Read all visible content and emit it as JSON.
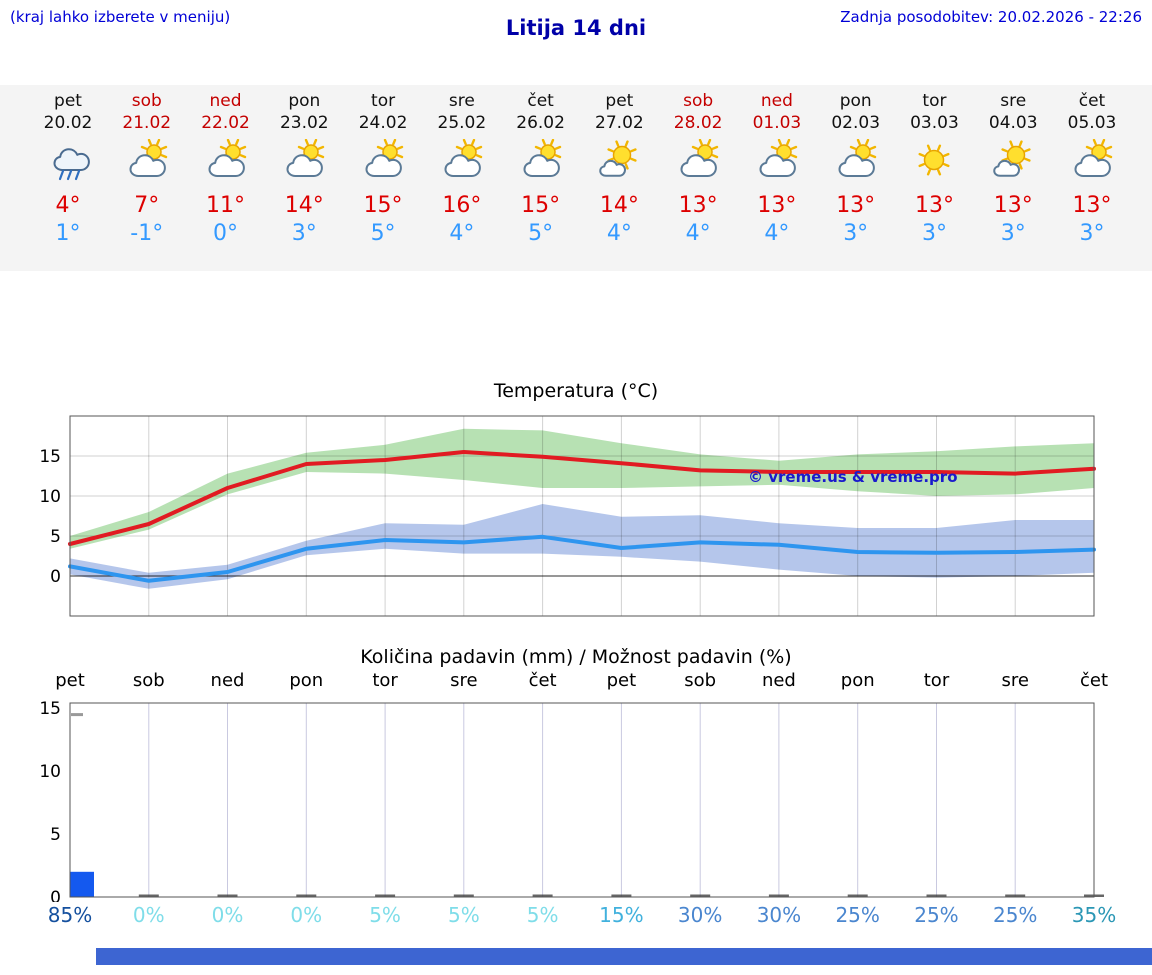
{
  "header": {
    "hint": "(kraj lahko izberete v meniju)",
    "title": "Litija 14 dni",
    "last_update": "Zadnja posodobitev: 20.02.2026 - 22:26"
  },
  "forecast": {
    "days": [
      {
        "name": "pet",
        "date": "20.02",
        "weekend": false,
        "icon": "rain",
        "high": "4°",
        "low": "1°"
      },
      {
        "name": "sob",
        "date": "21.02",
        "weekend": true,
        "icon": "partly-sunny",
        "high": "7°",
        "low": "-1°"
      },
      {
        "name": "ned",
        "date": "22.02",
        "weekend": true,
        "icon": "partly-sunny",
        "high": "11°",
        "low": "0°"
      },
      {
        "name": "pon",
        "date": "23.02",
        "weekend": false,
        "icon": "partly-sunny",
        "high": "14°",
        "low": "3°"
      },
      {
        "name": "tor",
        "date": "24.02",
        "weekend": false,
        "icon": "partly-sunny",
        "high": "15°",
        "low": "5°"
      },
      {
        "name": "sre",
        "date": "25.02",
        "weekend": false,
        "icon": "partly-sunny",
        "high": "16°",
        "low": "4°"
      },
      {
        "name": "čet",
        "date": "26.02",
        "weekend": false,
        "icon": "partly-sunny",
        "high": "15°",
        "low": "5°"
      },
      {
        "name": "pet",
        "date": "27.02",
        "weekend": false,
        "icon": "mostly-sunny",
        "high": "14°",
        "low": "4°"
      },
      {
        "name": "sob",
        "date": "28.02",
        "weekend": true,
        "icon": "partly-sunny",
        "high": "13°",
        "low": "4°"
      },
      {
        "name": "ned",
        "date": "01.03",
        "weekend": true,
        "icon": "partly-sunny",
        "high": "13°",
        "low": "4°"
      },
      {
        "name": "pon",
        "date": "02.03",
        "weekend": false,
        "icon": "partly-sunny",
        "high": "13°",
        "low": "3°"
      },
      {
        "name": "tor",
        "date": "03.03",
        "weekend": false,
        "icon": "sunny",
        "high": "13°",
        "low": "3°"
      },
      {
        "name": "sre",
        "date": "04.03",
        "weekend": false,
        "icon": "mostly-sunny",
        "high": "13°",
        "low": "3°"
      },
      {
        "name": "čet",
        "date": "05.03",
        "weekend": false,
        "icon": "partly-sunny",
        "high": "13°",
        "low": "3°"
      }
    ]
  },
  "chart_data": [
    {
      "type": "line",
      "title": "Temperatura (°C)",
      "categories": [
        "pet",
        "sob",
        "ned",
        "pon",
        "tor",
        "sre",
        "čet",
        "pet",
        "sob",
        "ned",
        "pon",
        "tor",
        "sre",
        "čet"
      ],
      "ylim": [
        -5,
        20
      ],
      "yticks": [
        0,
        5,
        10,
        15
      ],
      "grid": true,
      "legend_position": "none",
      "watermark": "© vreme.us & vreme.pro",
      "series": [
        {
          "name": "max-temperature",
          "color": "#e11b22",
          "band_color": "#a5d9a0",
          "values": [
            4,
            6.5,
            11,
            14,
            14.5,
            15.5,
            14.9,
            14.1,
            13.2,
            13,
            13,
            13,
            12.8,
            13.4
          ],
          "band_high": [
            5,
            8,
            12.8,
            15.4,
            16.4,
            18.4,
            18.2,
            16.6,
            15.2,
            14.4,
            15.2,
            15.6,
            16.2,
            16.6
          ],
          "band_low": [
            3.4,
            5.8,
            10.2,
            13,
            12.8,
            12,
            11,
            11,
            11.2,
            11.4,
            10.6,
            10,
            10.2,
            11
          ]
        },
        {
          "name": "min-temperature",
          "color": "#2e95ef",
          "band_color": "#a3b8e6",
          "values": [
            1.2,
            -0.6,
            0.5,
            3.4,
            4.5,
            4.2,
            4.9,
            3.5,
            4.2,
            3.9,
            3,
            2.9,
            3,
            3.3
          ],
          "band_high": [
            2.2,
            0.4,
            1.4,
            4.4,
            6.6,
            6.4,
            9,
            7.4,
            7.6,
            6.6,
            6,
            6,
            7,
            7
          ],
          "band_low": [
            0.2,
            -1.6,
            -0.4,
            2.6,
            3.4,
            2.8,
            2.8,
            2.4,
            1.8,
            0.8,
            0,
            -0.2,
            0,
            0.4
          ]
        }
      ]
    },
    {
      "type": "bar",
      "title": "Količina padavin (mm) / Možnost padavin (%)",
      "categories": [
        "pet",
        "sob",
        "ned",
        "pon",
        "tor",
        "sre",
        "čet",
        "pet",
        "sob",
        "ned",
        "pon",
        "tor",
        "sre",
        "čet"
      ],
      "ylim": [
        0,
        15.4
      ],
      "yticks": [
        0,
        5,
        10,
        15
      ],
      "bar_color": "#1459ef",
      "values": [
        2,
        0,
        0,
        0,
        0,
        0,
        0,
        0,
        0,
        0,
        0,
        0,
        0,
        0
      ],
      "probabilities": [
        {
          "label": "85%",
          "color": "#15509e"
        },
        {
          "label": "0%",
          "color": "#7fdde9"
        },
        {
          "label": "0%",
          "color": "#7fdde9"
        },
        {
          "label": "0%",
          "color": "#7fdde9"
        },
        {
          "label": "5%",
          "color": "#7fdde9"
        },
        {
          "label": "5%",
          "color": "#7fdde9"
        },
        {
          "label": "5%",
          "color": "#7fdde9"
        },
        {
          "label": "15%",
          "color": "#41b1dd"
        },
        {
          "label": "30%",
          "color": "#4a86cf"
        },
        {
          "label": "30%",
          "color": "#4a86cf"
        },
        {
          "label": "25%",
          "color": "#4a86cf"
        },
        {
          "label": "25%",
          "color": "#4a86cf"
        },
        {
          "label": "25%",
          "color": "#4a86cf"
        },
        {
          "label": "35%",
          "color": "#2b97b5"
        }
      ]
    }
  ],
  "colors": {
    "accent_blue": "#0000d6",
    "title_blue": "#0000a8",
    "weekend_red": "#c40000",
    "high_red": "#dd0000",
    "low_blue": "#3399ff",
    "strip_bg": "#f4f4f4",
    "footer_blue": "#3d65d2"
  }
}
